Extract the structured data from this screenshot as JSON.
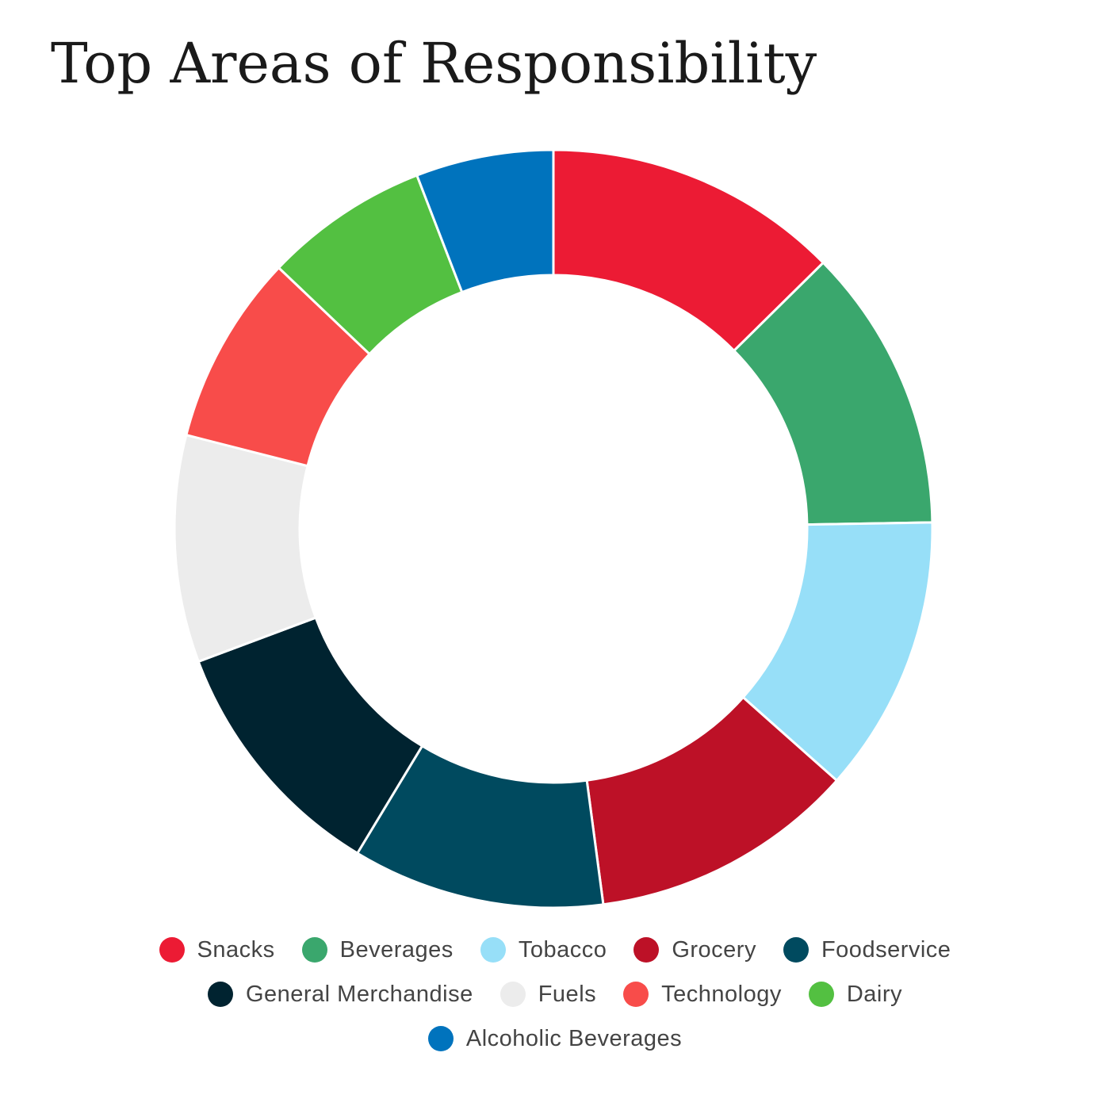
{
  "chart_data": {
    "type": "pie",
    "title": "Top Areas of Responsibility",
    "donut": true,
    "legend": "bottom",
    "categories": [
      "Snacks",
      "Beverages",
      "Tobacco",
      "Grocery",
      "Foodservice",
      "General Merchandise",
      "Fuels",
      "Technology",
      "Dairy",
      "Alcoholic Beverages"
    ],
    "values": [
      12.9,
      12.4,
      12.1,
      11.6,
      11.0,
      10.9,
      9.9,
      8.3,
      7.2,
      6.0
    ],
    "colors": [
      "#ec1b34",
      "#3aa76d",
      "#97dff8",
      "#bd1127",
      "#004a5f",
      "#002330",
      "#ececec",
      "#f84c4a",
      "#53c041",
      "#0073bd"
    ]
  }
}
